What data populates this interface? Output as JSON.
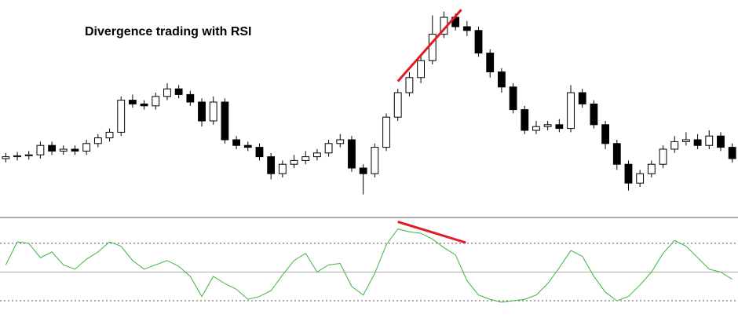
{
  "chart_data": [
    {
      "type": "candlestick",
      "title": "Divergence trading with RSI",
      "open": [
        20,
        21,
        21.5,
        22,
        27,
        24,
        25,
        24,
        28,
        31,
        34,
        51,
        49,
        48,
        53,
        57,
        54,
        50,
        40,
        50,
        30,
        27,
        26,
        21,
        12,
        17,
        19,
        21,
        23,
        28,
        30,
        15,
        12,
        26,
        42,
        55,
        63,
        72,
        86,
        95,
        90,
        88,
        76,
        66,
        58,
        46,
        35,
        37,
        38,
        36,
        55,
        49,
        38,
        28,
        17,
        7,
        12,
        17,
        25,
        29,
        30,
        27,
        32,
        26
      ],
      "high": [
        23,
        23.5,
        24,
        29,
        29,
        27,
        27,
        30,
        33,
        36,
        53,
        54,
        51,
        55,
        60,
        59,
        56,
        52,
        53,
        52,
        32,
        29,
        28,
        23,
        19,
        22,
        24,
        25,
        30,
        33,
        32,
        17,
        28,
        44,
        57,
        66,
        75,
        96,
        98,
        97,
        93,
        90,
        78,
        68,
        60,
        48,
        40,
        40,
        41,
        59,
        57,
        51,
        40,
        30,
        19,
        14,
        19,
        27,
        32,
        34,
        33,
        35,
        34,
        28
      ],
      "low": [
        18,
        19,
        19.5,
        20,
        22,
        22,
        22,
        22,
        26,
        29,
        32,
        47,
        46,
        46,
        51,
        52,
        48,
        37,
        38,
        28,
        25,
        24,
        19,
        9,
        10,
        15,
        17,
        19,
        21,
        26,
        13,
        1,
        10,
        24,
        40,
        53,
        60,
        70,
        84,
        88,
        85,
        74,
        63,
        55,
        44,
        33,
        33,
        35,
        34,
        34,
        47,
        36,
        25,
        14,
        3,
        5,
        10,
        15,
        23,
        27,
        25,
        25,
        24,
        18
      ],
      "close": [
        21,
        21.5,
        22,
        27,
        24,
        25,
        24,
        28,
        31,
        34,
        51,
        49,
        48,
        53,
        57,
        54,
        50,
        40,
        50,
        30,
        27,
        26,
        21,
        12,
        17,
        19,
        21,
        23,
        28,
        30,
        15,
        12,
        26,
        42,
        55,
        63,
        72,
        86,
        95,
        90,
        88,
        76,
        66,
        58,
        46,
        35,
        37,
        38,
        36,
        55,
        49,
        38,
        28,
        17,
        7,
        12,
        17,
        25,
        29,
        30,
        27,
        32,
        26,
        20
      ],
      "up_color": "#ffffff",
      "down_color": "#000000",
      "ylim": [
        0,
        100
      ],
      "trendlines": [
        {
          "x": [
            34,
            39.5
          ],
          "y": [
            61,
            99
          ],
          "color": "#e31b23"
        }
      ]
    },
    {
      "type": "line",
      "values": [
        55,
        71,
        70,
        60,
        64,
        55,
        52,
        59,
        64,
        71,
        68,
        58,
        52,
        55,
        58,
        54,
        47,
        33,
        47,
        42,
        38,
        31,
        33,
        37,
        48,
        58,
        63,
        50,
        55,
        56,
        40,
        34,
        49,
        69,
        80,
        78,
        77,
        73,
        67,
        62,
        44,
        34,
        31,
        29,
        30,
        31,
        34,
        42,
        53,
        65,
        61,
        47,
        36,
        30,
        33,
        41,
        50,
        63,
        72,
        68,
        60,
        52,
        50,
        45
      ],
      "color": "#3cb43c",
      "ylim": [
        18,
        88
      ],
      "yticks": [
        30,
        50,
        70
      ],
      "trendlines": [
        {
          "x": [
            34,
            39.9
          ],
          "y": [
            85,
            70.5
          ],
          "color": "#e31b23"
        }
      ]
    }
  ]
}
